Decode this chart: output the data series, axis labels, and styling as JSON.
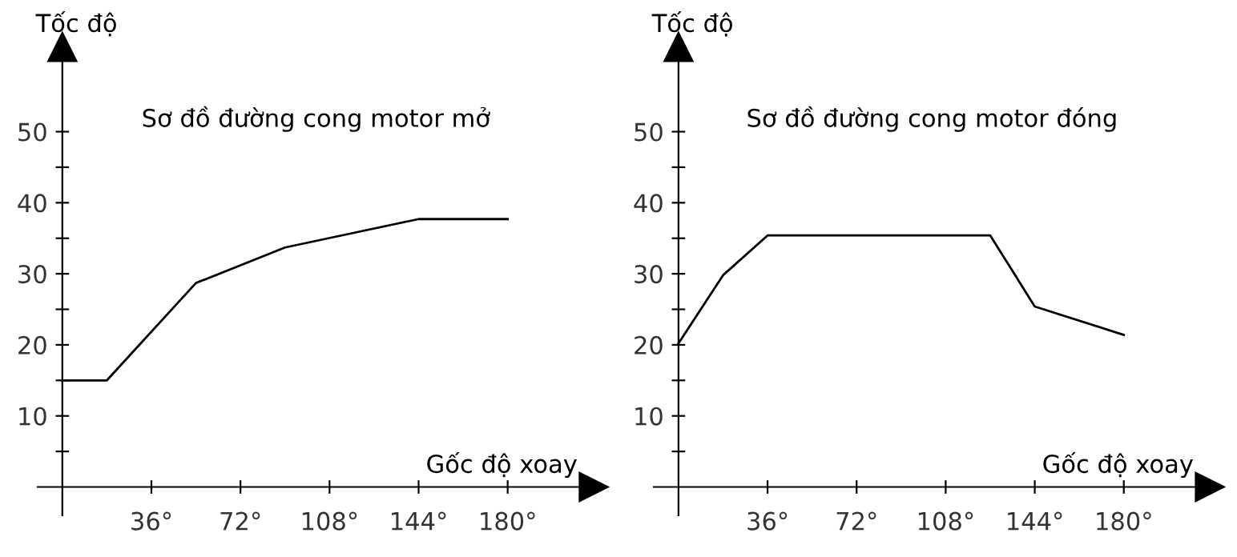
{
  "chart_data": [
    {
      "type": "line",
      "title": "Sơ đồ đường cong motor mở",
      "xlabel": "Gốc độ xoay",
      "ylabel": "Tốc độ",
      "color": "#000000",
      "x": [
        0,
        18,
        54,
        90,
        144,
        180
      ],
      "values": [
        15,
        15,
        28.7,
        33.7,
        37.7,
        37.7
      ],
      "xlim": [
        -10,
        215
      ],
      "ylim": [
        -4,
        62
      ],
      "xticks": [
        {
          "value": 36,
          "label": "36°"
        },
        {
          "value": 72,
          "label": "72°"
        },
        {
          "value": 108,
          "label": "108°"
        },
        {
          "value": 144,
          "label": "144°"
        },
        {
          "value": 180,
          "label": "180°"
        }
      ],
      "yticks": [
        {
          "value": 5,
          "label": null
        },
        10,
        {
          "value": 15,
          "label": null
        },
        20,
        {
          "value": 25,
          "label": null
        },
        30,
        {
          "value": 35,
          "label": null
        },
        40,
        {
          "value": 45,
          "label": null
        },
        50
      ],
      "grid": false
    },
    {
      "type": "line",
      "title": "Sơ đồ đường cong motor đóng",
      "xlabel": "Gốc độ xoay",
      "ylabel": "Tốc độ",
      "color": "#000000",
      "x": [
        0,
        18,
        36,
        126,
        144,
        180
      ],
      "values": [
        20.2,
        29.8,
        35.4,
        35.4,
        25.4,
        21.4
      ],
      "xlim": [
        -10,
        215
      ],
      "ylim": [
        -4,
        62
      ],
      "xticks": [
        {
          "value": 36,
          "label": "36°"
        },
        {
          "value": 72,
          "label": "72°"
        },
        {
          "value": 108,
          "label": "108°"
        },
        {
          "value": 144,
          "label": "144°"
        },
        {
          "value": 180,
          "label": "180°"
        }
      ],
      "yticks": [
        {
          "value": 5,
          "label": null
        },
        10,
        {
          "value": 15,
          "label": null
        },
        20,
        {
          "value": 25,
          "label": null
        },
        30,
        {
          "value": 35,
          "label": null
        },
        40,
        {
          "value": 45,
          "label": null
        },
        50
      ],
      "grid": false
    }
  ]
}
